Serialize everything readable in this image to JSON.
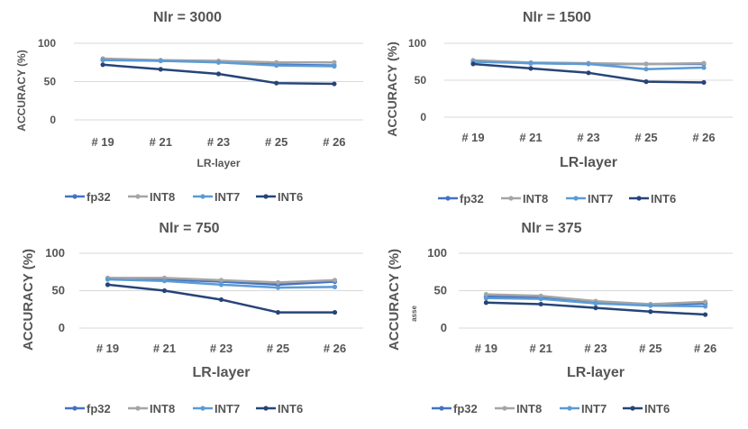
{
  "colors": {
    "fp32": "#4472C4",
    "INT8": "#A5A5A5",
    "INT7": "#5B9BD5",
    "INT6": "#264478",
    "gridline": "#D9D9D9",
    "text": "#595959"
  },
  "chart_data": [
    {
      "type": "line",
      "title": "Nlr = 3000",
      "xlabel": "LR-layer",
      "ylabel": "ACCURACY (%)",
      "categories": [
        "# 19",
        "# 21",
        "# 23",
        "# 25",
        "# 26"
      ],
      "ylim": [
        0,
        100
      ],
      "yticks": [
        "0",
        "50",
        "100"
      ],
      "legend_position": "bottom",
      "series": [
        {
          "name": "fp32",
          "values": [
            79,
            77,
            76,
            72,
            71
          ]
        },
        {
          "name": "INT8",
          "values": [
            80,
            78,
            77,
            75,
            75
          ]
        },
        {
          "name": "INT7",
          "values": [
            78,
            77,
            75,
            71,
            70
          ]
        },
        {
          "name": "INT6",
          "values": [
            72,
            66,
            60,
            48,
            47
          ]
        }
      ]
    },
    {
      "type": "line",
      "title": "Nlr = 1500",
      "xlabel": "LR-layer",
      "ylabel": "ACCURACY (%)",
      "categories": [
        "# 19",
        "# 21",
        "# 23",
        "# 25",
        "# 26"
      ],
      "ylim": [
        0,
        100
      ],
      "yticks": [
        "0",
        "50",
        "100"
      ],
      "legend_position": "bottom",
      "series": [
        {
          "name": "fp32",
          "values": [
            76,
            73,
            72,
            72,
            72
          ]
        },
        {
          "name": "INT8",
          "values": [
            77,
            74,
            73,
            72,
            73
          ]
        },
        {
          "name": "INT7",
          "values": [
            75,
            73,
            72,
            65,
            67
          ]
        },
        {
          "name": "INT6",
          "values": [
            72,
            66,
            60,
            48,
            47
          ]
        }
      ]
    },
    {
      "type": "line",
      "title": "Nlr =  750",
      "xlabel": "LR-layer",
      "ylabel": "ACCURACY (%)",
      "categories": [
        "# 19",
        "# 21",
        "# 23",
        "# 25",
        "# 26"
      ],
      "ylim": [
        0,
        100
      ],
      "yticks": [
        "0",
        "50",
        "100"
      ],
      "legend_position": "bottom",
      "series": [
        {
          "name": "fp32",
          "values": [
            66,
            65,
            62,
            58,
            62
          ]
        },
        {
          "name": "INT8",
          "values": [
            67,
            67,
            64,
            61,
            64
          ]
        },
        {
          "name": "INT7",
          "values": [
            65,
            63,
            58,
            54,
            55
          ]
        },
        {
          "name": "INT6",
          "values": [
            58,
            50,
            38,
            21,
            21
          ]
        }
      ]
    },
    {
      "type": "line",
      "title": "Nlr = 375",
      "xlabel": "LR-layer",
      "ylabel": "ACCURACY (%)",
      "ylabel_annotation": "asse",
      "categories": [
        "# 19",
        "# 21",
        "# 23",
        "# 25",
        "# 26"
      ],
      "ylim": [
        0,
        100
      ],
      "yticks": [
        "0",
        "50",
        "100"
      ],
      "legend_position": "bottom",
      "series": [
        {
          "name": "fp32",
          "values": [
            42,
            41,
            35,
            31,
            33
          ]
        },
        {
          "name": "INT8",
          "values": [
            45,
            43,
            36,
            32,
            35
          ]
        },
        {
          "name": "INT7",
          "values": [
            40,
            39,
            33,
            30,
            29
          ]
        },
        {
          "name": "INT6",
          "values": [
            34,
            32,
            27,
            22,
            18
          ]
        }
      ]
    }
  ]
}
